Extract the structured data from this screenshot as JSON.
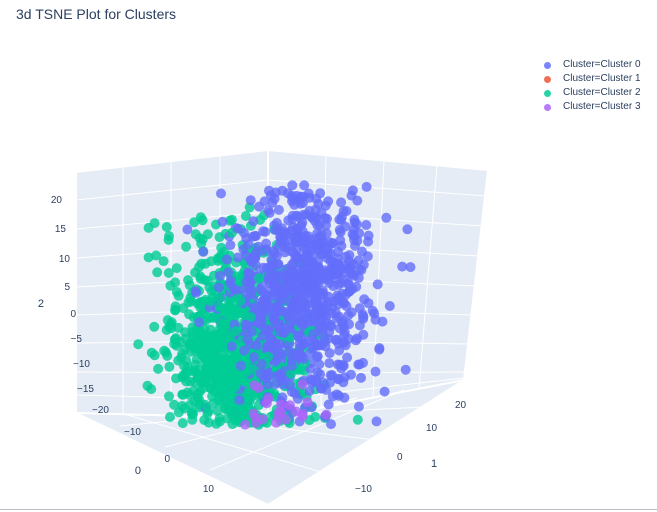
{
  "chart_data": {
    "type": "scatter",
    "title": "3d TSNE Plot for Clusters",
    "axis_titles": {
      "x": "0",
      "y": "1",
      "z": "2"
    },
    "ticks": {
      "z": [
        "20",
        "15",
        "10",
        "5",
        "0",
        "−5",
        "−10",
        "−15"
      ],
      "x": [
        "−20",
        "−10",
        "0",
        "10"
      ],
      "y": [
        "20",
        "10",
        "0",
        "−10"
      ]
    },
    "ranges": {
      "x": [
        -25,
        18
      ],
      "y": [
        -18,
        25
      ],
      "z": [
        -16,
        23
      ]
    },
    "series": [
      {
        "name": "Cluster=Cluster 0",
        "color": "#636efa",
        "blobs": [
          {
            "x": 2,
            "y": 6,
            "z": 10,
            "s": 6,
            "n": 850
          }
        ]
      },
      {
        "name": "Cluster=Cluster 1",
        "color": "#ef553b",
        "blobs": [
          {
            "x": -14,
            "y": -4,
            "z": -13,
            "s": 3.5,
            "n": 130
          }
        ]
      },
      {
        "name": "Cluster=Cluster 2",
        "color": "#00cc96",
        "blobs": [
          {
            "x": -12,
            "y": 6,
            "z": 3,
            "s": 6,
            "n": 950
          }
        ]
      },
      {
        "name": "Cluster=Cluster 3",
        "color": "#ab63fa",
        "blobs": [
          {
            "x": 8,
            "y": -6,
            "z": -4,
            "s": 3.5,
            "n": 380
          }
        ]
      }
    ]
  }
}
